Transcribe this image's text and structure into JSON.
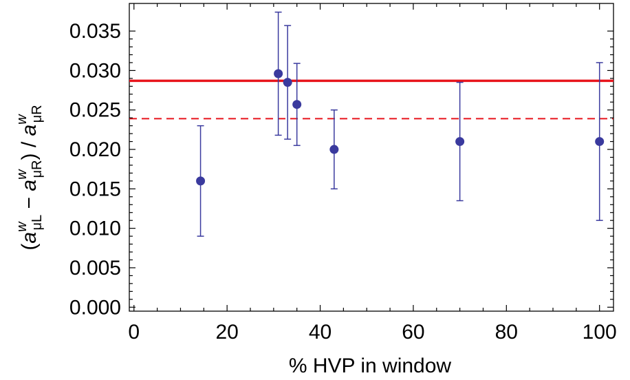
{
  "chart_data": {
    "type": "scatter",
    "xlabel": "% HVP in window",
    "ylabel": {
      "open": "(",
      "var1": "a",
      "sup1": "w",
      "sub1": "μL",
      "minus": " − ",
      "var2": "a",
      "sup2": "w",
      "sub2": "μR",
      "close": ") / ",
      "var3": "a",
      "sup3": "w",
      "sub3": "μR"
    },
    "xlim": [
      -1,
      103
    ],
    "ylim": [
      -0.0005,
      0.0385
    ],
    "x_ticks": [
      0,
      20,
      40,
      60,
      80,
      100
    ],
    "x_tick_labels": [
      "0",
      "20",
      "40",
      "60",
      "80",
      "100"
    ],
    "y_ticks": [
      0.0,
      0.005,
      0.01,
      0.015,
      0.02,
      0.025,
      0.03,
      0.035
    ],
    "y_tick_labels": [
      "0.000",
      "0.005",
      "0.010",
      "0.015",
      "0.020",
      "0.025",
      "0.030",
      "0.035"
    ],
    "grid": false,
    "series": [
      {
        "points": [
          {
            "x": 14.3,
            "y": 0.016,
            "err_low": 0.009,
            "err_high": 0.023
          },
          {
            "x": 31.0,
            "y": 0.0296,
            "err_low": 0.0218,
            "err_high": 0.0374
          },
          {
            "x": 33.0,
            "y": 0.0285,
            "err_low": 0.0213,
            "err_high": 0.0357
          },
          {
            "x": 35.0,
            "y": 0.0257,
            "err_low": 0.0205,
            "err_high": 0.0309
          },
          {
            "x": 43.0,
            "y": 0.02,
            "err_low": 0.015,
            "err_high": 0.025
          },
          {
            "x": 70.0,
            "y": 0.021,
            "err_low": 0.0135,
            "err_high": 0.0285
          },
          {
            "x": 100.0,
            "y": 0.021,
            "err_low": 0.011,
            "err_high": 0.031
          }
        ]
      }
    ],
    "reference_lines": [
      {
        "y": 0.0287,
        "style": "solid"
      },
      {
        "y": 0.0239,
        "style": "dashed"
      }
    ],
    "colors": {
      "points": "#3a3a9e",
      "error_bars": "#3a3a9e",
      "reference": "#e8141c",
      "axis": "#000000"
    }
  }
}
